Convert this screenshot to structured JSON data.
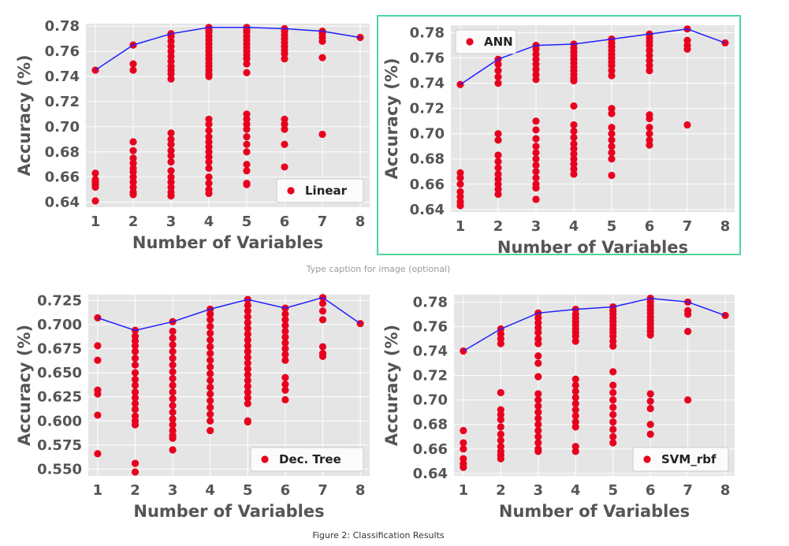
{
  "caption_placeholder": "Type caption for image (optional)",
  "figure_caption": "Figure 2: Classification Results",
  "colors": {
    "plot_background": "#e5e5e5",
    "grid": "#ffffff",
    "points": "#e8001f",
    "line": "#1f1fff",
    "axis_text": "#555555",
    "selection_border": "#4fd69f"
  },
  "chart_data": [
    {
      "type": "scatter",
      "legend": "Linear",
      "legend_position": "lower-right",
      "xlabel": "Number of Variables",
      "ylabel": "Accuracy (%)",
      "xlim": [
        0.75,
        8.25
      ],
      "ylim": [
        0.636,
        0.782
      ],
      "xticks": [
        1,
        2,
        3,
        4,
        5,
        6,
        7,
        8
      ],
      "yticks": [
        0.64,
        0.66,
        0.68,
        0.7,
        0.72,
        0.74,
        0.76,
        0.78
      ],
      "ytick_labels": [
        "0.64",
        "0.66",
        "0.68",
        "0.70",
        "0.72",
        "0.74",
        "0.76",
        "0.78"
      ],
      "grid": true,
      "points": [
        [
          1,
          [
            0.745,
            0.663,
            0.658,
            0.656,
            0.654,
            0.652,
            0.641
          ]
        ],
        [
          2,
          [
            0.765,
            0.75,
            0.745,
            0.688,
            0.681,
            0.675,
            0.671,
            0.667,
            0.664,
            0.66,
            0.656,
            0.652,
            0.648,
            0.646
          ]
        ],
        [
          3,
          [
            0.774,
            0.772,
            0.768,
            0.764,
            0.76,
            0.756,
            0.752,
            0.748,
            0.745,
            0.742,
            0.738,
            0.695,
            0.69,
            0.686,
            0.681,
            0.677,
            0.672,
            0.665,
            0.66,
            0.656,
            0.652,
            0.648,
            0.645
          ]
        ],
        [
          4,
          [
            0.779,
            0.777,
            0.775,
            0.772,
            0.769,
            0.766,
            0.763,
            0.76,
            0.757,
            0.754,
            0.751,
            0.748,
            0.745,
            0.742,
            0.74,
            0.706,
            0.702,
            0.697,
            0.692,
            0.688,
            0.684,
            0.68,
            0.676,
            0.672,
            0.667,
            0.66,
            0.655,
            0.65,
            0.647
          ]
        ],
        [
          5,
          [
            0.779,
            0.777,
            0.775,
            0.772,
            0.769,
            0.766,
            0.763,
            0.76,
            0.757,
            0.754,
            0.75,
            0.743,
            0.71,
            0.706,
            0.702,
            0.698,
            0.692,
            0.686,
            0.68,
            0.67,
            0.665,
            0.655,
            0.654
          ]
        ],
        [
          6,
          [
            0.778,
            0.776,
            0.773,
            0.77,
            0.767,
            0.764,
            0.761,
            0.758,
            0.754,
            0.706,
            0.702,
            0.698,
            0.686,
            0.668
          ]
        ],
        [
          7,
          [
            0.776,
            0.774,
            0.771,
            0.768,
            0.755,
            0.694
          ]
        ],
        [
          8,
          [
            0.771
          ]
        ]
      ],
      "best_line": [
        [
          1,
          0.745
        ],
        [
          2,
          0.765
        ],
        [
          3,
          0.774
        ],
        [
          4,
          0.779
        ],
        [
          5,
          0.779
        ],
        [
          6,
          0.778
        ],
        [
          7,
          0.776
        ],
        [
          8,
          0.771
        ]
      ]
    },
    {
      "type": "scatter",
      "legend": "ANN",
      "legend_position": "upper-left",
      "xlabel": "Number of Variables",
      "ylabel": "Accuracy (%)",
      "xlim": [
        0.75,
        8.25
      ],
      "ylim": [
        0.638,
        0.786
      ],
      "xticks": [
        1,
        2,
        3,
        4,
        5,
        6,
        7,
        8
      ],
      "yticks": [
        0.64,
        0.66,
        0.68,
        0.7,
        0.72,
        0.74,
        0.76,
        0.78
      ],
      "ytick_labels": [
        "0.64",
        "0.66",
        "0.68",
        "0.70",
        "0.72",
        "0.74",
        "0.76",
        "0.78"
      ],
      "grid": true,
      "points": [
        [
          1,
          [
            0.739,
            0.669,
            0.665,
            0.66,
            0.654,
            0.65,
            0.646,
            0.643
          ]
        ],
        [
          2,
          [
            0.759,
            0.755,
            0.75,
            0.745,
            0.74,
            0.7,
            0.695,
            0.683,
            0.678,
            0.673,
            0.668,
            0.664,
            0.66,
            0.656,
            0.652
          ]
        ],
        [
          3,
          [
            0.77,
            0.767,
            0.763,
            0.759,
            0.755,
            0.751,
            0.747,
            0.743,
            0.71,
            0.703,
            0.696,
            0.69,
            0.685,
            0.68,
            0.675,
            0.67,
            0.665,
            0.66,
            0.657,
            0.648
          ]
        ],
        [
          4,
          [
            0.771,
            0.768,
            0.765,
            0.762,
            0.759,
            0.756,
            0.753,
            0.75,
            0.747,
            0.744,
            0.742,
            0.722,
            0.707,
            0.702,
            0.697,
            0.692,
            0.688,
            0.684,
            0.68,
            0.676,
            0.672,
            0.668
          ]
        ],
        [
          5,
          [
            0.775,
            0.772,
            0.769,
            0.766,
            0.763,
            0.76,
            0.757,
            0.754,
            0.75,
            0.746,
            0.72,
            0.716,
            0.705,
            0.7,
            0.695,
            0.69,
            0.685,
            0.68,
            0.667
          ]
        ],
        [
          6,
          [
            0.779,
            0.776,
            0.773,
            0.77,
            0.766,
            0.762,
            0.758,
            0.754,
            0.75,
            0.715,
            0.712,
            0.705,
            0.7,
            0.695,
            0.691
          ]
        ],
        [
          7,
          [
            0.783,
            0.774,
            0.77,
            0.767,
            0.707
          ]
        ],
        [
          8,
          [
            0.772
          ]
        ]
      ],
      "best_line": [
        [
          1,
          0.739
        ],
        [
          2,
          0.759
        ],
        [
          3,
          0.77
        ],
        [
          4,
          0.771
        ],
        [
          5,
          0.775
        ],
        [
          6,
          0.779
        ],
        [
          7,
          0.783
        ],
        [
          8,
          0.772
        ]
      ]
    },
    {
      "type": "scatter",
      "legend": "Dec. Tree",
      "legend_position": "lower-right",
      "xlabel": "Number of Variables",
      "ylabel": "Accuracy (%)",
      "xlim": [
        0.75,
        8.25
      ],
      "ylim": [
        0.543,
        0.731
      ],
      "xticks": [
        1,
        2,
        3,
        4,
        5,
        6,
        7,
        8
      ],
      "yticks": [
        0.55,
        0.575,
        0.6,
        0.625,
        0.65,
        0.675,
        0.7,
        0.725
      ],
      "ytick_labels": [
        "0.550",
        "0.575",
        "0.600",
        "0.625",
        "0.650",
        "0.675",
        "0.700",
        "0.725"
      ],
      "grid": true,
      "points": [
        [
          1,
          [
            0.707,
            0.678,
            0.663,
            0.632,
            0.628,
            0.606,
            0.566
          ]
        ],
        [
          2,
          [
            0.694,
            0.688,
            0.683,
            0.678,
            0.672,
            0.665,
            0.658,
            0.65,
            0.643,
            0.637,
            0.63,
            0.624,
            0.618,
            0.612,
            0.605,
            0.6,
            0.596,
            0.556,
            0.547
          ]
        ],
        [
          3,
          [
            0.703,
            0.693,
            0.686,
            0.679,
            0.672,
            0.665,
            0.658,
            0.651,
            0.644,
            0.637,
            0.63,
            0.623,
            0.616,
            0.609,
            0.602,
            0.596,
            0.59,
            0.585,
            0.582,
            0.57
          ]
        ],
        [
          4,
          [
            0.716,
            0.711,
            0.705,
            0.698,
            0.691,
            0.684,
            0.677,
            0.67,
            0.663,
            0.656,
            0.649,
            0.642,
            0.635,
            0.628,
            0.621,
            0.614,
            0.607,
            0.6,
            0.59
          ]
        ],
        [
          5,
          [
            0.726,
            0.72,
            0.714,
            0.708,
            0.702,
            0.696,
            0.69,
            0.684,
            0.678,
            0.672,
            0.666,
            0.66,
            0.654,
            0.648,
            0.642,
            0.636,
            0.63,
            0.624,
            0.618,
            0.6,
            0.599
          ]
        ],
        [
          6,
          [
            0.717,
            0.711,
            0.705,
            0.699,
            0.693,
            0.687,
            0.681,
            0.675,
            0.669,
            0.663,
            0.645,
            0.638,
            0.632,
            0.622
          ]
        ],
        [
          7,
          [
            0.728,
            0.722,
            0.714,
            0.705,
            0.677,
            0.67,
            0.667
          ]
        ],
        [
          8,
          [
            0.701
          ]
        ]
      ],
      "best_line": [
        [
          1,
          0.707
        ],
        [
          2,
          0.694
        ],
        [
          3,
          0.703
        ],
        [
          4,
          0.716
        ],
        [
          5,
          0.726
        ],
        [
          6,
          0.717
        ],
        [
          7,
          0.728
        ],
        [
          8,
          0.701
        ]
      ]
    },
    {
      "type": "scatter",
      "legend": "SVM_rbf",
      "legend_position": "lower-right",
      "xlabel": "Number of Variables",
      "ylabel": "Accuracy (%)",
      "xlim": [
        0.75,
        8.25
      ],
      "ylim": [
        0.638,
        0.786
      ],
      "xticks": [
        1,
        2,
        3,
        4,
        5,
        6,
        7,
        8
      ],
      "yticks": [
        0.64,
        0.66,
        0.68,
        0.7,
        0.72,
        0.74,
        0.76,
        0.78
      ],
      "ytick_labels": [
        "0.64",
        "0.66",
        "0.68",
        "0.70",
        "0.72",
        "0.74",
        "0.76",
        "0.78"
      ],
      "grid": true,
      "points": [
        [
          1,
          [
            0.74,
            0.675,
            0.665,
            0.66,
            0.652,
            0.648,
            0.645
          ]
        ],
        [
          2,
          [
            0.758,
            0.754,
            0.75,
            0.746,
            0.706,
            0.692,
            0.688,
            0.684,
            0.678,
            0.672,
            0.667,
            0.662,
            0.658,
            0.655,
            0.652
          ]
        ],
        [
          3,
          [
            0.771,
            0.767,
            0.763,
            0.759,
            0.755,
            0.75,
            0.746,
            0.736,
            0.73,
            0.719,
            0.705,
            0.7,
            0.695,
            0.69,
            0.685,
            0.68,
            0.675,
            0.67,
            0.665,
            0.66,
            0.658
          ]
        ],
        [
          4,
          [
            0.774,
            0.77,
            0.767,
            0.764,
            0.761,
            0.758,
            0.755,
            0.752,
            0.748,
            0.717,
            0.712,
            0.707,
            0.702,
            0.697,
            0.692,
            0.687,
            0.682,
            0.678,
            0.662,
            0.658
          ]
        ],
        [
          5,
          [
            0.776,
            0.773,
            0.77,
            0.767,
            0.764,
            0.761,
            0.758,
            0.755,
            0.752,
            0.748,
            0.744,
            0.723,
            0.712,
            0.706,
            0.7,
            0.694,
            0.688,
            0.682,
            0.676,
            0.67,
            0.665
          ]
        ],
        [
          6,
          [
            0.783,
            0.78,
            0.777,
            0.774,
            0.771,
            0.768,
            0.765,
            0.762,
            0.759,
            0.756,
            0.753,
            0.705,
            0.699,
            0.693,
            0.68,
            0.672
          ]
        ],
        [
          7,
          [
            0.78,
            0.773,
            0.77,
            0.756,
            0.7
          ]
        ],
        [
          8,
          [
            0.769
          ]
        ]
      ],
      "best_line": [
        [
          1,
          0.74
        ],
        [
          2,
          0.758
        ],
        [
          3,
          0.771
        ],
        [
          4,
          0.774
        ],
        [
          5,
          0.776
        ],
        [
          6,
          0.783
        ],
        [
          7,
          0.78
        ],
        [
          8,
          0.769
        ]
      ]
    }
  ]
}
